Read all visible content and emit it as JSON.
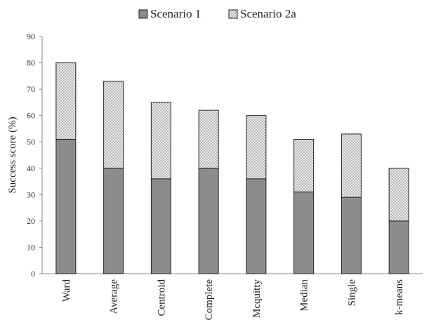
{
  "chart_data": {
    "type": "bar",
    "stacked": true,
    "title": "",
    "xlabel": "",
    "ylabel": "Success score (%)",
    "ylim": [
      0,
      90
    ],
    "yticks": [
      0,
      10,
      20,
      30,
      40,
      50,
      60,
      70,
      80,
      90
    ],
    "grid": false,
    "legend": "top-center",
    "categories": [
      "Ward",
      "Average",
      "Centroid",
      "Complete",
      "Mcquitty",
      "Median",
      "Single",
      "k-means"
    ],
    "series": [
      {
        "name": "Scenario 1",
        "values": [
          51,
          40,
          36,
          40,
          36,
          31,
          29,
          20
        ],
        "color": "#8c8c8c",
        "pattern": "solid"
      },
      {
        "name": "Scenario 2a",
        "values": [
          29,
          33,
          29,
          22,
          24,
          20,
          24,
          20
        ],
        "color": "#d0d0d0",
        "pattern": "dotted"
      }
    ],
    "totals": [
      80,
      73,
      65,
      62,
      60,
      51,
      53,
      40
    ]
  }
}
